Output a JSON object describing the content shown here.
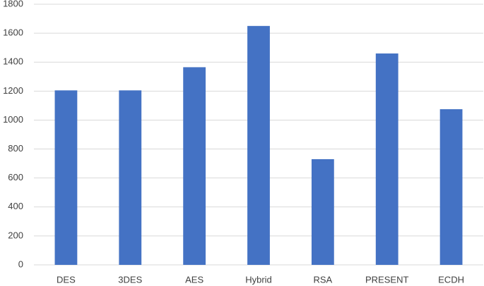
{
  "chart_data": {
    "type": "bar",
    "categories": [
      "DES",
      "3DES",
      "AES",
      "Hybrid",
      "RSA",
      "PRESENT",
      "ECDH"
    ],
    "values": [
      1205,
      1205,
      1365,
      1650,
      730,
      1460,
      1075
    ],
    "color": "#4472c4",
    "ylim": [
      0,
      1800
    ],
    "yticks": [
      0,
      200,
      400,
      600,
      800,
      1000,
      1200,
      1400,
      1600,
      1800
    ],
    "grid": true
  }
}
